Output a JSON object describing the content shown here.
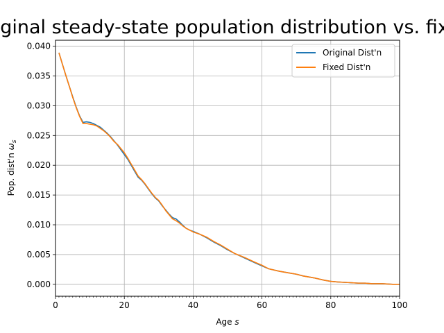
{
  "chart_data": {
    "type": "line",
    "title": "Original steady-state population distribution vs. fixed",
    "xlabel": "Age",
    "xlabel_var": "s",
    "ylabel": "Pop. dist'n",
    "ylabel_var": "ω",
    "ylabel_sub": "s",
    "xlim": [
      0,
      100
    ],
    "ylim": [
      -0.002,
      0.041
    ],
    "xticks": [
      0,
      20,
      40,
      60,
      80,
      100
    ],
    "yticks": [
      0.0,
      0.005,
      0.01,
      0.015,
      0.02,
      0.025,
      0.03,
      0.035,
      0.04
    ],
    "ytick_labels": [
      "0.000",
      "0.005",
      "0.010",
      "0.015",
      "0.020",
      "0.025",
      "0.030",
      "0.035",
      "0.040"
    ],
    "grid": true,
    "legend_position": "top-right",
    "x": [
      1,
      2,
      3,
      4,
      5,
      6,
      7,
      8,
      9,
      10,
      11,
      12,
      13,
      14,
      15,
      16,
      17,
      18,
      19,
      20,
      21,
      22,
      23,
      24,
      25,
      26,
      27,
      28,
      29,
      30,
      31,
      32,
      33,
      34,
      35,
      36,
      37,
      38,
      39,
      40,
      42,
      44,
      46,
      48,
      50,
      52,
      55,
      58,
      60,
      62,
      65,
      68,
      70,
      72,
      75,
      78,
      80,
      82,
      85,
      88,
      90,
      92,
      95,
      98,
      100
    ],
    "series": [
      {
        "name": "Original Dist'n",
        "color": "#1f77b4",
        "values": [
          0.0389,
          0.037,
          0.0351,
          0.0333,
          0.0315,
          0.0298,
          0.0283,
          0.0272,
          0.0273,
          0.0272,
          0.027,
          0.0267,
          0.0264,
          0.0259,
          0.0254,
          0.0248,
          0.0241,
          0.0234,
          0.0226,
          0.0218,
          0.021,
          0.02,
          0.019,
          0.018,
          0.0175,
          0.0168,
          0.016,
          0.0152,
          0.0145,
          0.014,
          0.0132,
          0.0125,
          0.0118,
          0.0112,
          0.011,
          0.0105,
          0.0099,
          0.0094,
          0.0091,
          0.0089,
          0.0084,
          0.0078,
          0.0071,
          0.0065,
          0.0058,
          0.0052,
          0.0044,
          0.0036,
          0.0031,
          0.0026,
          0.0022,
          0.0019,
          0.0017,
          0.0014,
          0.0011,
          0.0007,
          0.0005,
          0.0004,
          0.0003,
          0.0002,
          0.0002,
          0.0001,
          0.0001,
          0.0,
          0.0
        ]
      },
      {
        "name": "Fixed Dist'n",
        "color": "#ff7f0e",
        "values": [
          0.0389,
          0.037,
          0.0351,
          0.0333,
          0.0314,
          0.0297,
          0.0282,
          0.027,
          0.027,
          0.0269,
          0.0268,
          0.0266,
          0.0262,
          0.0258,
          0.0253,
          0.0247,
          0.024,
          0.0235,
          0.0228,
          0.0221,
          0.0212,
          0.0202,
          0.0192,
          0.0182,
          0.0176,
          0.0169,
          0.0161,
          0.0153,
          0.0146,
          0.0141,
          0.0133,
          0.0124,
          0.0117,
          0.011,
          0.0107,
          0.0103,
          0.0098,
          0.0094,
          0.0091,
          0.0088,
          0.0084,
          0.0079,
          0.0072,
          0.0066,
          0.0059,
          0.0052,
          0.0045,
          0.0037,
          0.0032,
          0.0026,
          0.0022,
          0.0019,
          0.0017,
          0.0014,
          0.0011,
          0.0007,
          0.0005,
          0.0004,
          0.0003,
          0.0002,
          0.0002,
          0.0001,
          0.0001,
          0.0,
          0.0
        ]
      }
    ]
  }
}
